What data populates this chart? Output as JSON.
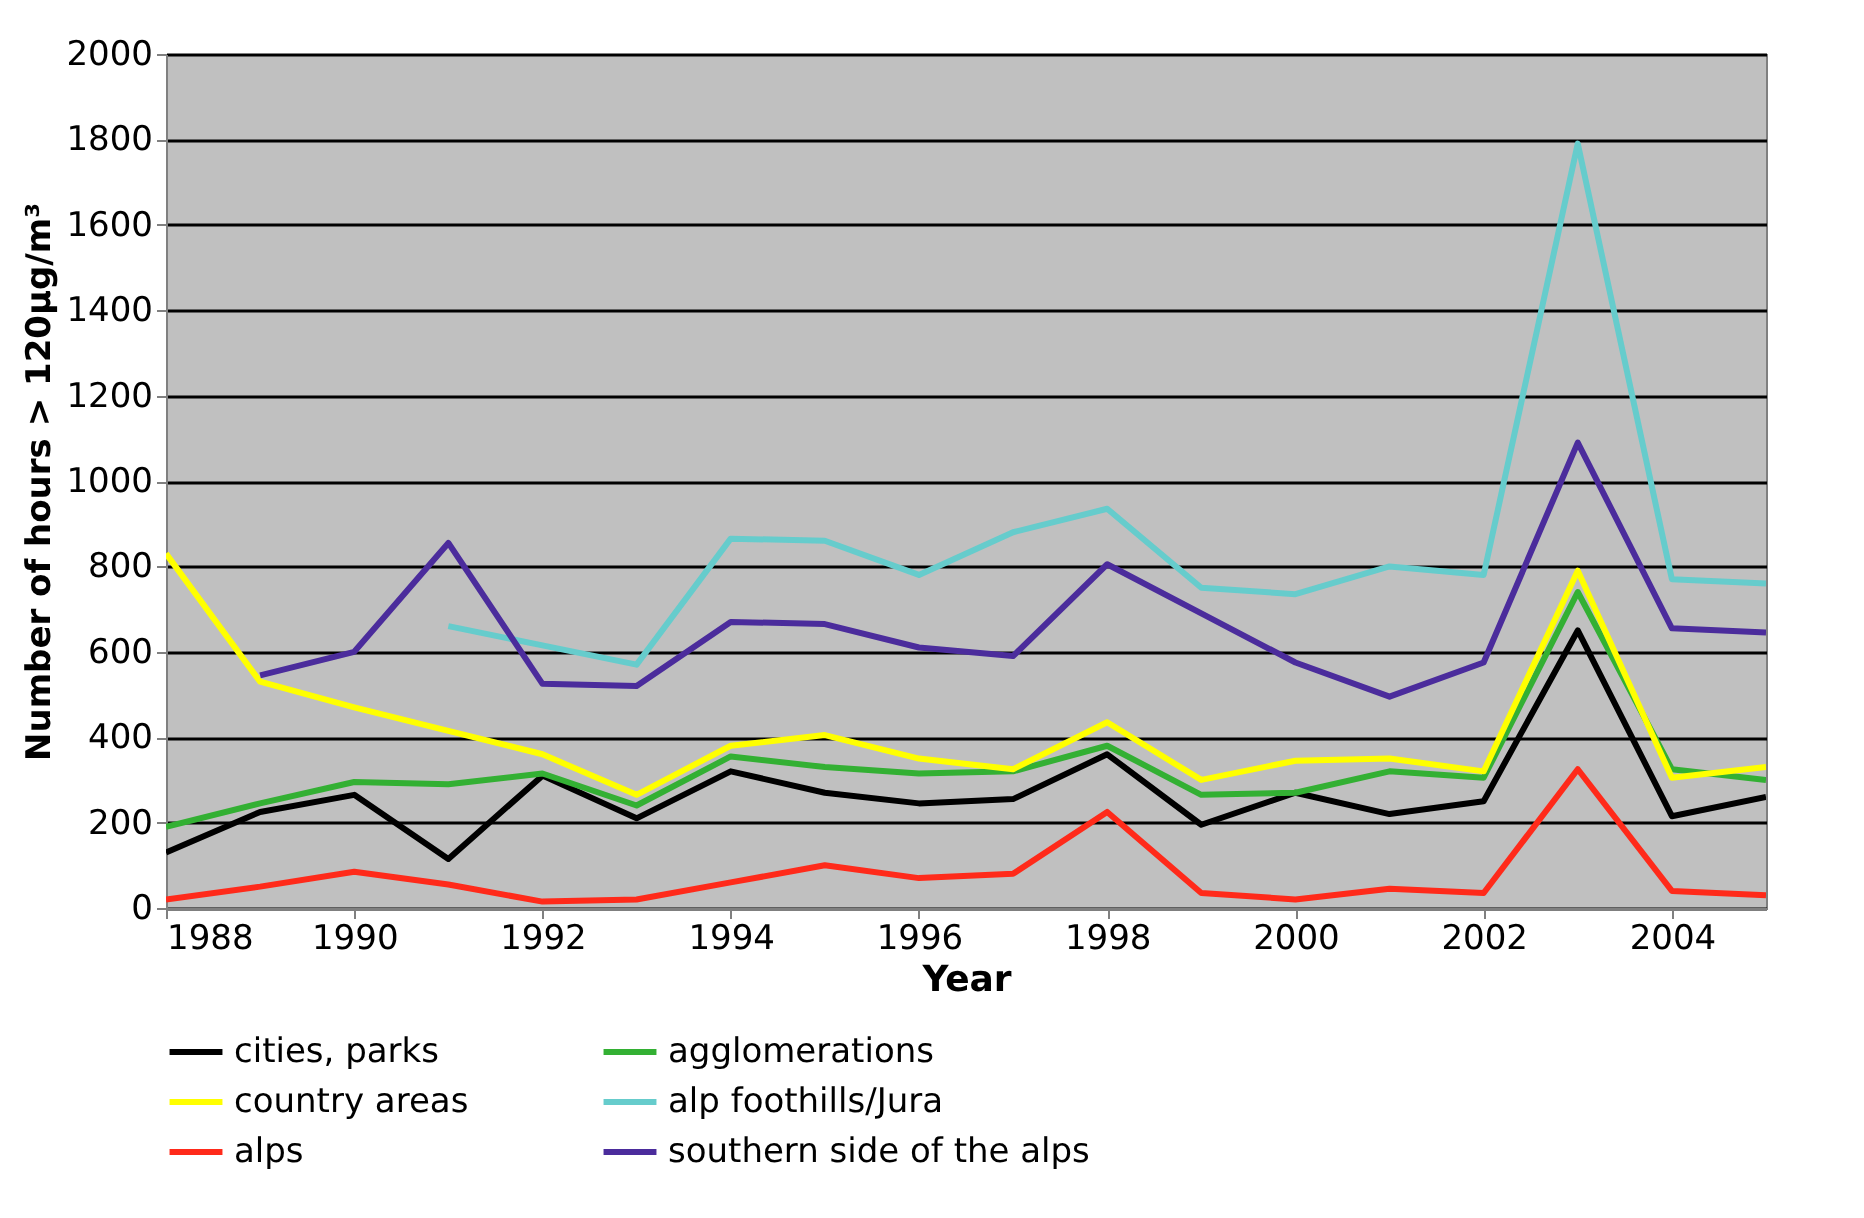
{
  "chart_data": {
    "type": "line",
    "xlabel": "Year",
    "ylabel": "Number of hours > 120µg/m³",
    "x": [
      1988,
      1989,
      1990,
      1991,
      1992,
      1993,
      1994,
      1995,
      1996,
      1997,
      1998,
      1999,
      2000,
      2001,
      2002,
      2003,
      2004,
      2005
    ],
    "series": [
      {
        "name": "cities, parks",
        "color": "#000000",
        "values": [
          130,
          225,
          265,
          115,
          310,
          210,
          320,
          270,
          245,
          255,
          360,
          195,
          270,
          220,
          250,
          650,
          215,
          260
        ]
      },
      {
        "name": "agglomerations",
        "color": "#33b033",
        "values": [
          190,
          245,
          295,
          290,
          315,
          240,
          355,
          330,
          315,
          320,
          380,
          265,
          270,
          320,
          305,
          740,
          325,
          300
        ]
      },
      {
        "name": "country areas",
        "color": "#ffff00",
        "values": [
          830,
          530,
          470,
          415,
          360,
          265,
          380,
          405,
          350,
          325,
          435,
          300,
          345,
          350,
          320,
          790,
          305,
          330
        ]
      },
      {
        "name": "alp foothills/Jura",
        "color": "#66cccc",
        "values": [
          null,
          null,
          null,
          660,
          615,
          570,
          865,
          860,
          780,
          880,
          935,
          750,
          735,
          800,
          780,
          1790,
          770,
          760
        ]
      },
      {
        "name": "alps",
        "color": "#ff2a1a",
        "values": [
          20,
          50,
          85,
          55,
          15,
          20,
          60,
          100,
          70,
          80,
          225,
          35,
          20,
          45,
          35,
          325,
          40,
          30
        ]
      },
      {
        "name": "southern side of the alps",
        "color": "#4b2c9c",
        "values": [
          null,
          545,
          600,
          855,
          525,
          520,
          670,
          665,
          610,
          590,
          805,
          690,
          575,
          495,
          575,
          1090,
          655,
          645
        ]
      }
    ],
    "xlim": [
      1988,
      2005
    ],
    "xticks": [
      1988,
      1990,
      1992,
      1994,
      1996,
      1998,
      2000,
      2002,
      2004
    ],
    "ylim": [
      0,
      2000
    ],
    "yticks": [
      0,
      200,
      400,
      600,
      800,
      1000,
      1200,
      1400,
      1600,
      1800,
      2000
    ],
    "grid": "y",
    "legend": "bottom",
    "marker": "none",
    "line_style": "solid"
  }
}
